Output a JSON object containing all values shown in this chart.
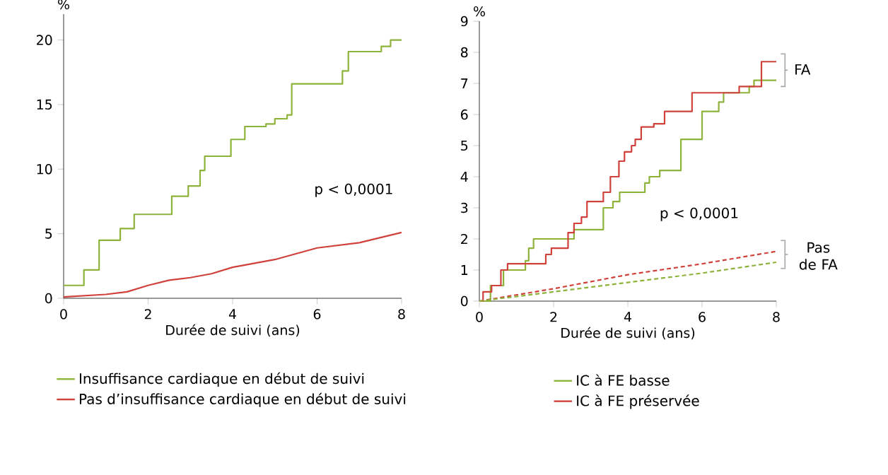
{
  "chart_data": [
    {
      "type": "step",
      "xlabel": "Durée de suivi (ans)",
      "ylabel": "%",
      "xlim": [
        0,
        8
      ],
      "xticks": [
        0,
        2,
        4,
        6,
        8
      ],
      "ylim": [
        0,
        22
      ],
      "yticks": [
        0,
        5,
        10,
        15,
        20
      ],
      "legend": "bottom",
      "grid": false,
      "marker": "none",
      "annotations": [
        "p < 0,0001"
      ],
      "series": [
        {
          "name": "Insuffisance cardiaque en début de suivi",
          "color": "#8db33a",
          "x": [
            0,
            0.48,
            0.84,
            1.34,
            1.67,
            2.56,
            2.95,
            3.23,
            3.34,
            3.96,
            4.29,
            4.79,
            5.0,
            5.29,
            5.4,
            6.6,
            6.74,
            7.52,
            7.74,
            8
          ],
          "values": [
            1,
            2.2,
            4.5,
            5.4,
            6.5,
            7.9,
            8.7,
            9.9,
            11,
            12.3,
            13.3,
            13.5,
            13.9,
            14.2,
            16.6,
            17.6,
            19.1,
            19.5,
            20,
            20
          ]
        },
        {
          "name": "Pas d’insuffisance cardiaque en début de suivi",
          "color": "#d0413b",
          "type": "line",
          "x": [
            0,
            1,
            1.5,
            2,
            2.5,
            3,
            3.5,
            4,
            5,
            6,
            7,
            8
          ],
          "values": [
            0.1,
            0.3,
            0.5,
            1.0,
            1.4,
            1.6,
            1.9,
            2.4,
            3.0,
            3.9,
            4.3,
            5.1
          ]
        }
      ]
    },
    {
      "type": "step",
      "xlabel": "Durée de suivi (ans)",
      "ylabel": "%",
      "xlim": [
        0,
        8
      ],
      "xticks": [
        0,
        2,
        4,
        6,
        8
      ],
      "ylim": [
        0,
        9
      ],
      "yticks": [
        0,
        1,
        2,
        3,
        4,
        5,
        6,
        7,
        8,
        9
      ],
      "legend": "bottom",
      "grid": false,
      "marker": "none",
      "annotations": [
        "p < 0,0001",
        "FA",
        "Pas de FA"
      ],
      "series": [
        {
          "name": "IC à FE basse",
          "color": "#8db33a",
          "x": [
            0,
            0.3,
            0.65,
            1.12,
            1.24,
            1.33,
            1.46,
            2.45,
            2.55,
            3.19,
            3.34,
            3.6,
            3.78,
            4.36,
            4.46,
            4.58,
            4.86,
            5.3,
            5.43,
            5.68,
            6.0,
            6.39,
            6.45,
            6.58,
            7.15,
            7.27,
            7.4,
            8
          ],
          "values": [
            0,
            0.5,
            1.0,
            1.0,
            1.3,
            1.7,
            2.0,
            2.0,
            2.3,
            2.3,
            3.0,
            3.2,
            3.5,
            3.5,
            3.8,
            4.0,
            4.2,
            4.2,
            5.2,
            5.2,
            6.1,
            6.1,
            6.4,
            6.7,
            6.7,
            6.9,
            7.1,
            7.1
          ]
        },
        {
          "name": "IC à FE préservée",
          "color": "#d0413b",
          "x": [
            0,
            0.1,
            0.33,
            0.58,
            0.76,
            1.63,
            1.79,
            1.94,
            2.23,
            2.39,
            2.55,
            2.75,
            2.9,
            3.34,
            3.53,
            3.76,
            3.91,
            4.1,
            4.2,
            4.36,
            4.7,
            4.99,
            5.18,
            5.73,
            5.85,
            7.0,
            7.27,
            7.6,
            8
          ],
          "values": [
            0,
            0.3,
            0.5,
            1.0,
            1.2,
            1.2,
            1.5,
            1.7,
            1.7,
            2.2,
            2.5,
            2.7,
            3.2,
            3.5,
            4.0,
            4.5,
            4.8,
            5.0,
            5.2,
            5.6,
            5.7,
            6.1,
            6.1,
            6.7,
            6.7,
            6.9,
            6.9,
            7.7,
            7.7
          ]
        },
        {
          "color": "#d0413b",
          "type": "line",
          "line_style": "dashed",
          "x": [
            0,
            2,
            4,
            6,
            8
          ],
          "values": [
            0,
            0.4,
            0.85,
            1.2,
            1.6
          ]
        },
        {
          "color": "#8db33a",
          "type": "line",
          "line_style": "dashed",
          "x": [
            0,
            2,
            4,
            6,
            8
          ],
          "values": [
            0,
            0.3,
            0.6,
            0.9,
            1.25
          ]
        }
      ]
    }
  ]
}
